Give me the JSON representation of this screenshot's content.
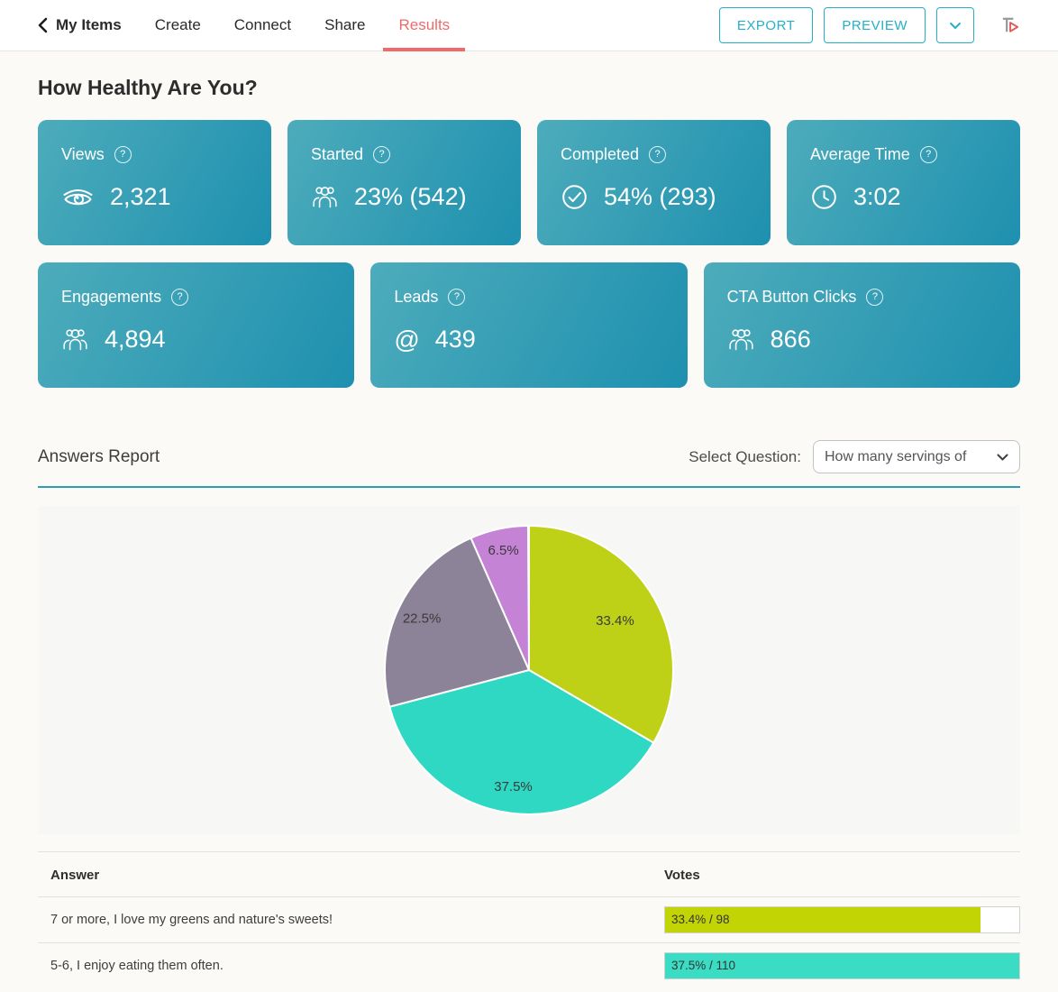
{
  "header": {
    "back_label": "My Items",
    "nav": {
      "create": "Create",
      "connect": "Connect",
      "share": "Share",
      "results": "Results"
    },
    "buttons": {
      "export": "EXPORT",
      "preview": "PREVIEW"
    }
  },
  "page_title": "How Healthy Are You?",
  "stats": [
    {
      "label": "Views",
      "value": "2,321",
      "icon": "eye-icon"
    },
    {
      "label": "Started",
      "value": "23% (542)",
      "icon": "people-icon"
    },
    {
      "label": "Completed",
      "value": "54% (293)",
      "icon": "check-circle-icon"
    },
    {
      "label": "Average Time",
      "value": "3:02",
      "icon": "clock-icon"
    },
    {
      "label": "Engagements",
      "value": "4,894",
      "icon": "people-icon"
    },
    {
      "label": "Leads",
      "value": "439",
      "icon": "at-icon"
    },
    {
      "label": "CTA Button Clicks",
      "value": "866",
      "icon": "people-icon"
    }
  ],
  "answers_report": {
    "heading": "Answers Report",
    "select_label": "Select Question:",
    "selected_question": "How many servings of"
  },
  "chart_data": {
    "type": "pie",
    "title": "",
    "labels": [
      "33.4%",
      "37.5%",
      "22.5%",
      "6.5%"
    ],
    "values": [
      33.4,
      37.5,
      22.5,
      6.5
    ],
    "colors": [
      "#bed117",
      "#2fd8c2",
      "#8d8398",
      "#c583d6"
    ],
    "label_radius": [
      110,
      130,
      132,
      136
    ],
    "start_angle_deg": 0,
    "direction": "clockwise",
    "labels_position": "inside",
    "legend": "none"
  },
  "answers_table": {
    "headers": [
      "Answer",
      "Votes"
    ],
    "rows": [
      {
        "answer": "7 or more, I love my greens and nature's sweets!",
        "votes_label": "33.4% / 98",
        "bar_fill_pct": 89,
        "bar_color": "#c3d405"
      },
      {
        "answer": "5-6, I enjoy eating them often.",
        "votes_label": "37.5% / 110",
        "bar_fill_pct": 100,
        "bar_color": "#3adcc4"
      }
    ]
  },
  "colors": {
    "accent_coral": "#ef6a6b",
    "accent_teal": "#24b0c6",
    "card_gradient_start": "#4dacbb",
    "card_gradient_end": "#1e90af",
    "report_divider": "#2d9eb3"
  }
}
